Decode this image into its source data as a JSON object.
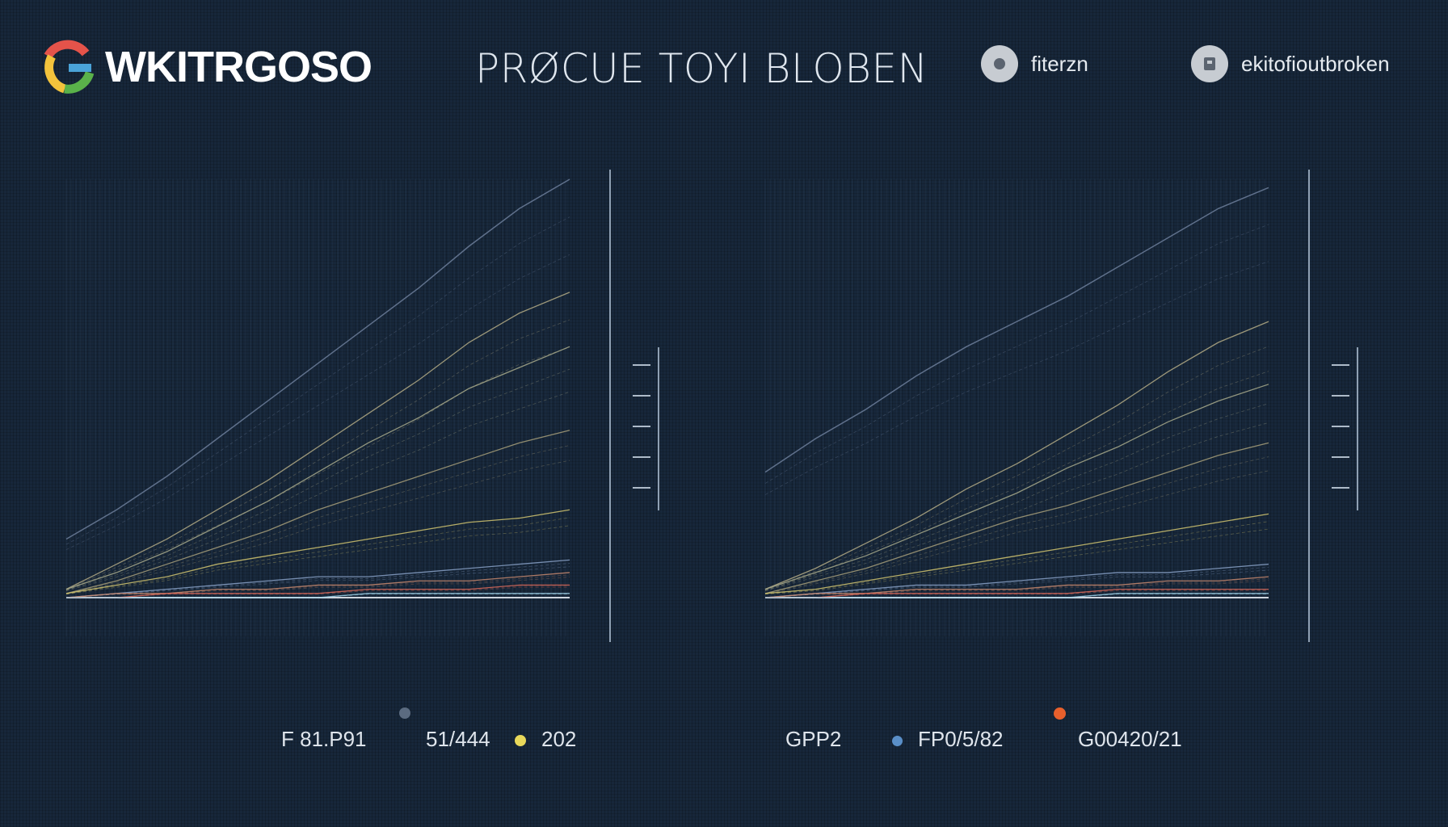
{
  "header": {
    "logo_text": "WKITRGOSO",
    "title": "PRØCUE TOYI BLOBEN",
    "filter_label": "fiterzn",
    "user_label": "ekitofioutbroken"
  },
  "legend": {
    "left": [
      "F 81.P91",
      "51/444",
      "202"
    ],
    "right": [
      "GPP2",
      "FP0/5/82",
      "G00420/21"
    ]
  },
  "colors": {
    "background": "#17273a",
    "accent_yellow": "#e8d85a",
    "accent_blue": "#5a8fc8",
    "accent_orange": "#e8602c",
    "marker_gray": "#5b6b80"
  },
  "chart_data": [
    {
      "type": "line",
      "title": "",
      "xlabel": "",
      "ylabel": "",
      "grid": true,
      "x": [
        0,
        1,
        2,
        3,
        4,
        5,
        6,
        7,
        8,
        9,
        10
      ],
      "series": [
        {
          "values": [
            0.14,
            0.21,
            0.29,
            0.38,
            0.47,
            0.56,
            0.65,
            0.74,
            0.84,
            0.93,
            1.0
          ]
        },
        {
          "values": [
            0.02,
            0.08,
            0.14,
            0.21,
            0.28,
            0.36,
            0.44,
            0.52,
            0.61,
            0.68,
            0.73
          ]
        },
        {
          "values": [
            0.02,
            0.06,
            0.11,
            0.17,
            0.23,
            0.3,
            0.37,
            0.43,
            0.5,
            0.55,
            0.6
          ]
        },
        {
          "values": [
            0.01,
            0.04,
            0.08,
            0.12,
            0.16,
            0.21,
            0.25,
            0.29,
            0.33,
            0.37,
            0.4
          ]
        },
        {
          "values": [
            0.01,
            0.03,
            0.05,
            0.08,
            0.1,
            0.12,
            0.14,
            0.16,
            0.18,
            0.19,
            0.21
          ]
        },
        {
          "values": [
            0.0,
            0.01,
            0.02,
            0.03,
            0.04,
            0.05,
            0.05,
            0.06,
            0.07,
            0.08,
            0.09
          ]
        },
        {
          "values": [
            0.0,
            0.01,
            0.01,
            0.02,
            0.02,
            0.03,
            0.03,
            0.04,
            0.04,
            0.05,
            0.06
          ]
        },
        {
          "values": [
            0.0,
            0.0,
            0.01,
            0.01,
            0.01,
            0.01,
            0.02,
            0.02,
            0.02,
            0.03,
            0.03
          ]
        },
        {
          "values": [
            0.0,
            0.0,
            0.0,
            0.0,
            0.0,
            0.0,
            0.01,
            0.01,
            0.01,
            0.01,
            0.01
          ]
        }
      ]
    },
    {
      "type": "line",
      "title": "",
      "xlabel": "",
      "ylabel": "",
      "grid": true,
      "x": [
        0,
        1,
        2,
        3,
        4,
        5,
        6,
        7,
        8,
        9,
        10
      ],
      "series": [
        {
          "values": [
            0.3,
            0.38,
            0.45,
            0.53,
            0.6,
            0.66,
            0.72,
            0.79,
            0.86,
            0.93,
            0.98
          ]
        },
        {
          "values": [
            0.02,
            0.07,
            0.13,
            0.19,
            0.26,
            0.32,
            0.39,
            0.46,
            0.54,
            0.61,
            0.66
          ]
        },
        {
          "values": [
            0.02,
            0.06,
            0.1,
            0.15,
            0.2,
            0.25,
            0.31,
            0.36,
            0.42,
            0.47,
            0.51
          ]
        },
        {
          "values": [
            0.01,
            0.04,
            0.07,
            0.11,
            0.15,
            0.19,
            0.22,
            0.26,
            0.3,
            0.34,
            0.37
          ]
        },
        {
          "values": [
            0.01,
            0.02,
            0.04,
            0.06,
            0.08,
            0.1,
            0.12,
            0.14,
            0.16,
            0.18,
            0.2
          ]
        },
        {
          "values": [
            0.0,
            0.01,
            0.02,
            0.03,
            0.03,
            0.04,
            0.05,
            0.06,
            0.06,
            0.07,
            0.08
          ]
        },
        {
          "values": [
            0.0,
            0.01,
            0.01,
            0.02,
            0.02,
            0.02,
            0.03,
            0.03,
            0.04,
            0.04,
            0.05
          ]
        },
        {
          "values": [
            0.0,
            0.0,
            0.01,
            0.01,
            0.01,
            0.01,
            0.01,
            0.02,
            0.02,
            0.02,
            0.02
          ]
        },
        {
          "values": [
            0.0,
            0.0,
            0.0,
            0.0,
            0.0,
            0.0,
            0.0,
            0.01,
            0.01,
            0.01,
            0.01
          ]
        }
      ]
    }
  ]
}
